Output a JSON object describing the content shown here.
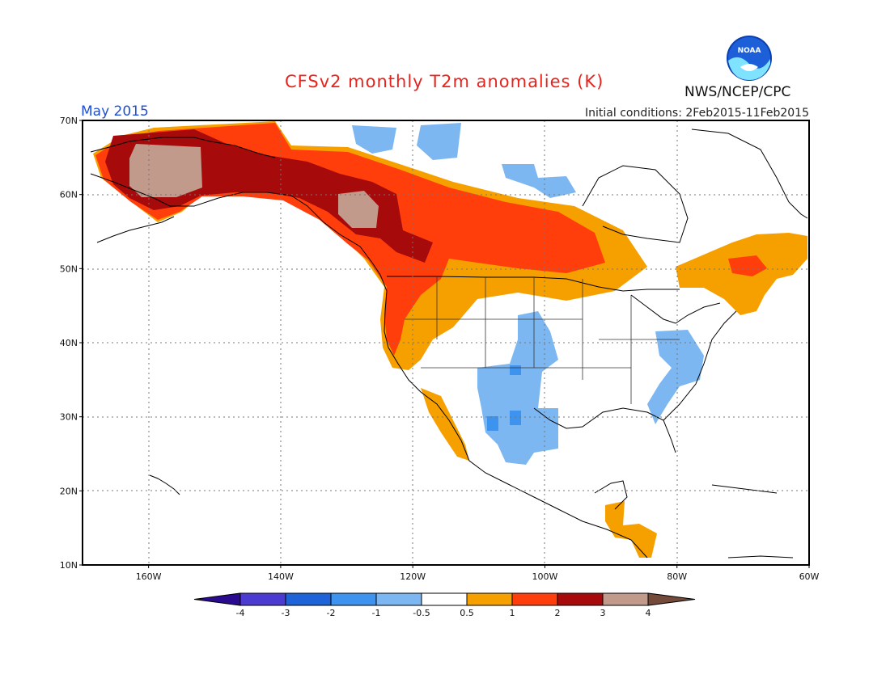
{
  "header": {
    "title": "CFSv2 monthly T2m anomalies (K)",
    "month": "May 2015",
    "initial_conditions": "Initial conditions: 2Feb2015-11Feb2015",
    "agency": "NWS/NCEP/CPC",
    "logo_text": "NOAA"
  },
  "map": {
    "lon_labels": [
      "160W",
      "140W",
      "120W",
      "100W",
      "80W",
      "60W"
    ],
    "lat_labels": [
      "70N",
      "60N",
      "50N",
      "40N",
      "30N",
      "20N",
      "10N"
    ],
    "lon_range": [
      -170,
      -60
    ],
    "lat_range": [
      10,
      70
    ],
    "grid": "dotted",
    "anomaly_regions": [
      {
        "area": "Alaska",
        "category": "3 to 4"
      },
      {
        "area": "Western Canada / Yukon",
        "category": "2 to 3"
      },
      {
        "area": "Central Canada",
        "category": "1 to 2"
      },
      {
        "area": "US West Coast",
        "category": "1 to 2"
      },
      {
        "area": "Eastern Canada / Maritimes",
        "category": "0.5 to 1"
      },
      {
        "area": "Southern Rockies / Texas",
        "category": "-1 to -0.5"
      },
      {
        "area": "Northern Canada",
        "category": "-1 to -0.5"
      },
      {
        "area": "Central America",
        "category": "0.5 to 1"
      }
    ]
  },
  "colorbar": {
    "labels": [
      "-4",
      "-3",
      "-2",
      "-1",
      "-0.5",
      "0.5",
      "1",
      "2",
      "3",
      "4"
    ],
    "colors": {
      "lt_-4": "#2a0a8e",
      "-4_-3": "#4b3bd0",
      "-3_-2": "#1e63d8",
      "-2_-1": "#3e93ee",
      "-1_-0.5": "#7db7f2",
      "-0.5_0.5": "#ffffff",
      "0.5_1": "#f6a000",
      "1_2": "#ff3e0c",
      "2_3": "#a60a0a",
      "3_4": "#c19a8c",
      "gt_4": "#744a3a"
    }
  }
}
